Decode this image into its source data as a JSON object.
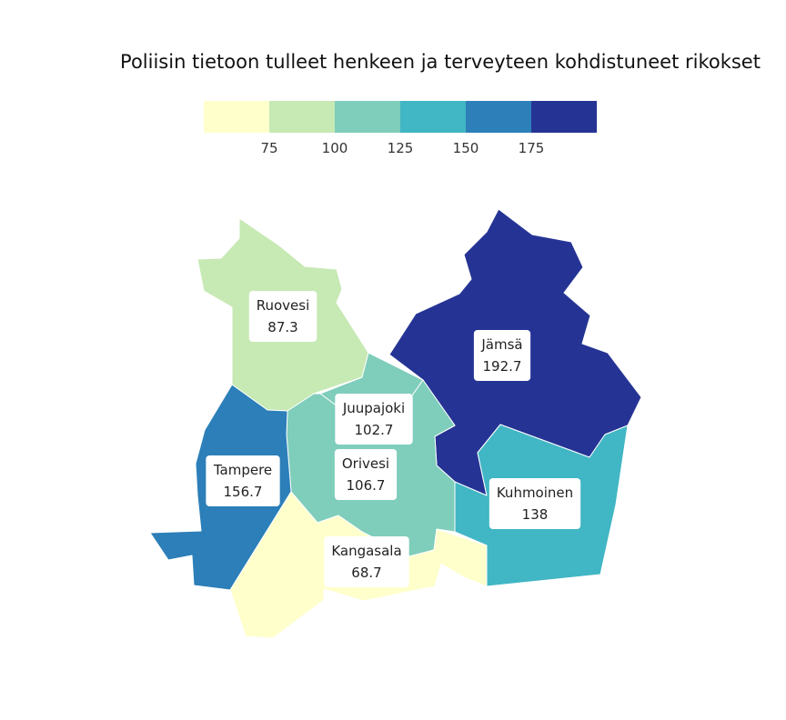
{
  "title": "Poliisin tietoon tulleet henkeen ja terveyteen kohdistuneet rikokset",
  "legend": {
    "colors": [
      "#ffffcc",
      "#c7e9b4",
      "#7fcdbb",
      "#41b6c4",
      "#2c7fb8",
      "#253494"
    ],
    "ticks": [
      "75",
      "100",
      "125",
      "150",
      "175"
    ]
  },
  "regions": [
    {
      "name": "Ruovesi",
      "value": "87.3",
      "color": "#c7e9b4"
    },
    {
      "name": "Jämsä",
      "value": "192.7",
      "color": "#253494"
    },
    {
      "name": "Juupajoki",
      "value": "102.7",
      "color": "#7fcdbb"
    },
    {
      "name": "Orivesi",
      "value": "106.7",
      "color": "#7fcdbb"
    },
    {
      "name": "Tampere",
      "value": "156.7",
      "color": "#2c7fb8"
    },
    {
      "name": "Kuhmoinen",
      "value": "138",
      "color": "#41b6c4"
    },
    {
      "name": "Kangasala",
      "value": "68.7",
      "color": "#ffffcc"
    }
  ]
}
